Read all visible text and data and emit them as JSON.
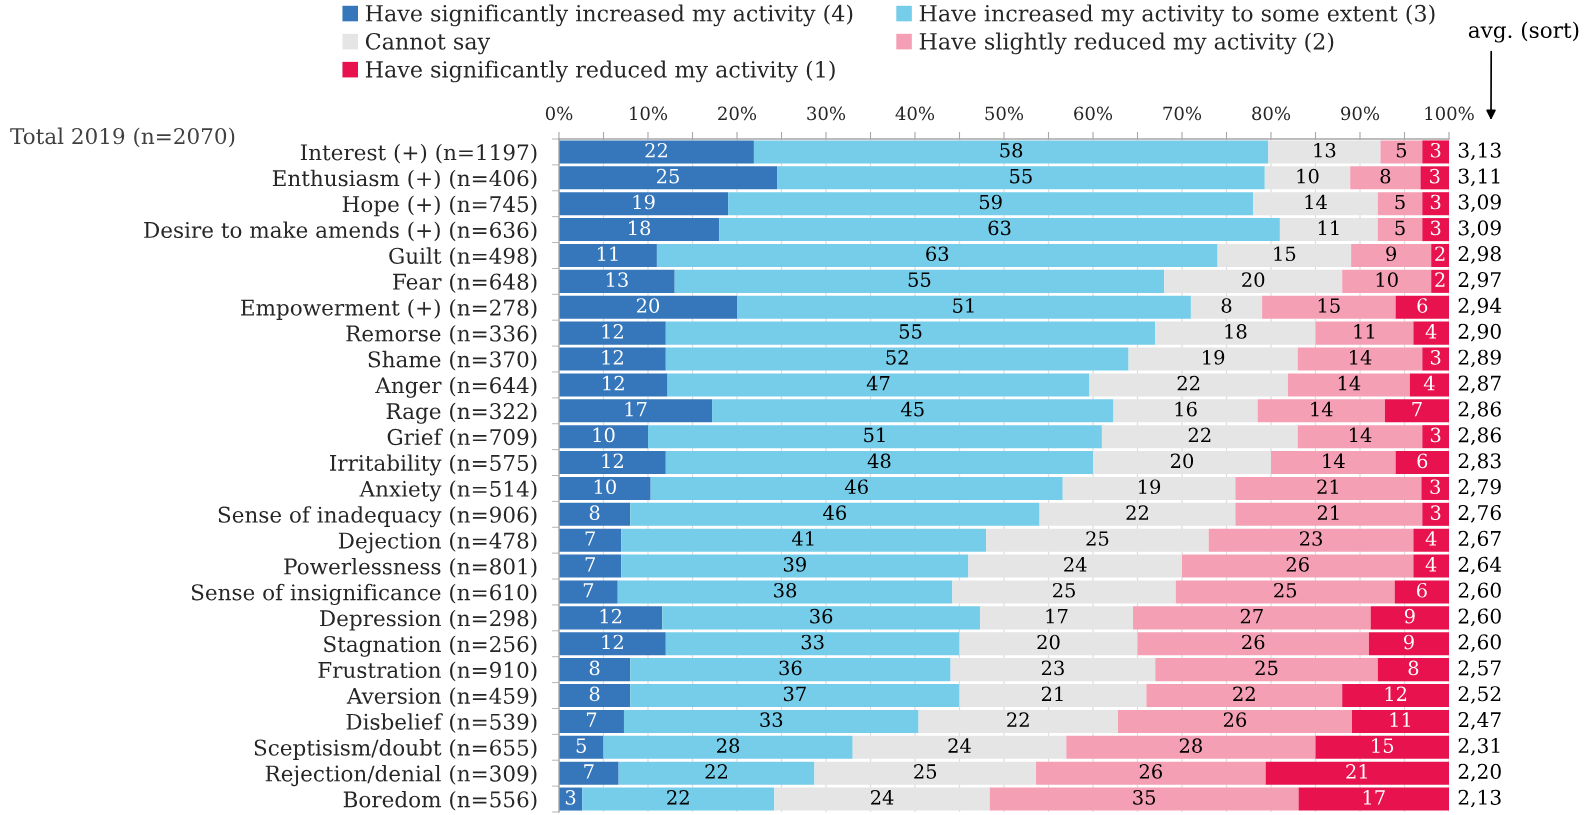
{
  "chart_data": {
    "type": "bar",
    "orientation": "horizontal",
    "stacked": true,
    "categories": [
      "Interest (+) (n=1197)",
      "Enthusiasm (+) (n=406)",
      "Hope (+) (n=745)",
      "Desire to make amends (+) (n=636)",
      "Guilt (n=498)",
      "Fear (n=648)",
      "Empowerment (+) (n=278)",
      "Remorse (n=336)",
      "Shame (n=370)",
      "Anger (n=644)",
      "Rage (n=322)",
      "Grief (n=709)",
      "Irritability (n=575)",
      "Anxiety (n=514)",
      "Sense of inadequacy (n=906)",
      "Dejection (n=478)",
      "Powerlessness (n=801)",
      "Sense of insignificance (n=610)",
      "Depression (n=298)",
      "Stagnation (n=256)",
      "Frustration (n=910)",
      "Aversion (n=459)",
      "Disbelief (n=539)",
      "Sceptisism/doubt (n=655)",
      "Rejection/denial (n=309)",
      "Boredom (n=556)"
    ],
    "series": [
      {
        "name": "Have significantly increased my activity (4)",
        "color": "#3677bb",
        "values": [
          21.9,
          24.5,
          19,
          18,
          11,
          13,
          20,
          12,
          12,
          12.2,
          17.2,
          10,
          12,
          10.3,
          8,
          7,
          7,
          6.6,
          11.6,
          12,
          8,
          8,
          7.3,
          5,
          6.7,
          2.6
        ],
        "value_labels": [
          "22",
          "25",
          "19",
          "18",
          "11",
          "13",
          "20",
          "12",
          "12",
          "12",
          "17",
          "10",
          "12",
          "10",
          "8",
          "7",
          "7",
          "7",
          "12",
          "12",
          "8",
          "8",
          "7",
          "5",
          "7",
          "3"
        ]
      },
      {
        "name": "Have increased my activity to some extent (3)",
        "color": "#75cde9",
        "values": [
          57.8,
          54.8,
          59,
          63,
          63,
          55,
          51,
          55,
          52,
          47.4,
          45.1,
          51,
          48,
          46.3,
          46,
          41,
          39,
          37.6,
          35.7,
          33,
          36,
          37,
          33.1,
          28,
          22.0,
          21.6
        ],
        "value_labels": [
          "58",
          "55",
          "59",
          "63",
          "63",
          "55",
          "51",
          "55",
          "52",
          "47",
          "45",
          "51",
          "48",
          "46",
          "46",
          "41",
          "39",
          "38",
          "36",
          "33",
          "36",
          "37",
          "33",
          "28",
          "22",
          "22"
        ]
      },
      {
        "name": "Cannot say",
        "color": "#e5e5e5",
        "values": [
          12.6,
          9.6,
          14,
          11,
          15,
          20,
          8,
          18,
          19,
          22.3,
          16.2,
          22,
          20,
          19.4,
          22,
          25,
          24,
          25.1,
          17.2,
          20,
          23,
          21,
          22.4,
          24,
          24.9,
          24.2
        ],
        "value_labels": [
          "13",
          "10",
          "14",
          "11",
          "15",
          "20",
          "8",
          "18",
          "19",
          "22",
          "16",
          "22",
          "20",
          "19",
          "22",
          "25",
          "24",
          "25",
          "17",
          "20",
          "23",
          "21",
          "22",
          "24",
          "25",
          "24"
        ]
      },
      {
        "name": "Have slightly reduced my activity (2)",
        "color": "#f59fb5",
        "values": [
          4.7,
          7.9,
          5,
          5,
          9,
          10,
          15,
          11,
          14,
          13.7,
          14.3,
          14,
          14,
          20.9,
          21,
          23,
          26,
          24.6,
          26.7,
          26,
          25,
          22,
          26.3,
          28,
          25.8,
          34.7
        ],
        "value_labels": [
          "5",
          "8",
          "5",
          "5",
          "9",
          "10",
          "15",
          "11",
          "14",
          "14",
          "14",
          "14",
          "14",
          "21",
          "21",
          "23",
          "26",
          "25",
          "27",
          "26",
          "25",
          "22",
          "26",
          "28",
          "26",
          "35"
        ]
      },
      {
        "name": "Have significantly reduced my activity (1)",
        "color": "#e8134e",
        "values": [
          3.0,
          3.2,
          3,
          3,
          2,
          2,
          6,
          4,
          3,
          4.4,
          7.2,
          3,
          6,
          3.1,
          3,
          4,
          4,
          6.1,
          8.8,
          9,
          8,
          12,
          10.9,
          15,
          20.6,
          16.9
        ],
        "value_labels": [
          "3",
          "3",
          "3",
          "3",
          "2",
          "2",
          "6",
          "4",
          "3",
          "4",
          "7",
          "3",
          "6",
          "3",
          "3",
          "4",
          "4",
          "6",
          "9",
          "9",
          "8",
          "12",
          "11",
          "15",
          "21",
          "17"
        ]
      }
    ],
    "xlim": [
      0,
      100
    ],
    "xticks": [
      {
        "value": 0,
        "label": "0%"
      },
      {
        "value": 5,
        "label": null
      },
      {
        "value": 10,
        "label": "10%"
      },
      {
        "value": 15,
        "label": null
      },
      {
        "value": 20,
        "label": "20%"
      },
      {
        "value": 25,
        "label": null
      },
      {
        "value": 30,
        "label": "30%"
      },
      {
        "value": 35,
        "label": null
      },
      {
        "value": 40,
        "label": "40%"
      },
      {
        "value": 45,
        "label": null
      },
      {
        "value": 50,
        "label": "50%"
      },
      {
        "value": 55,
        "label": null
      },
      {
        "value": 60,
        "label": "60%"
      },
      {
        "value": 65,
        "label": null
      },
      {
        "value": 70,
        "label": "70%"
      },
      {
        "value": 75,
        "label": null
      },
      {
        "value": 80,
        "label": "80%"
      },
      {
        "value": 85,
        "label": null
      },
      {
        "value": 90,
        "label": "90%"
      },
      {
        "value": 95,
        "label": null
      },
      {
        "value": 100,
        "label": "100%"
      }
    ],
    "grid": "x",
    "legend": "top",
    "annotations": [
      "Total 2019 (n=2070)",
      "avg. (sort)",
      "3,13",
      "3,11",
      "3,09",
      "3,09",
      "2,98",
      "2,97",
      "2,94",
      "2,90",
      "2,89",
      "2,87",
      "2,86",
      "2,86",
      "2,83",
      "2,79",
      "2,76",
      "2,67",
      "2,64",
      "2,60",
      "2,60",
      "2,60",
      "2,57",
      "2,52",
      "2,47",
      "2,31",
      "2,20",
      "2,13"
    ]
  }
}
